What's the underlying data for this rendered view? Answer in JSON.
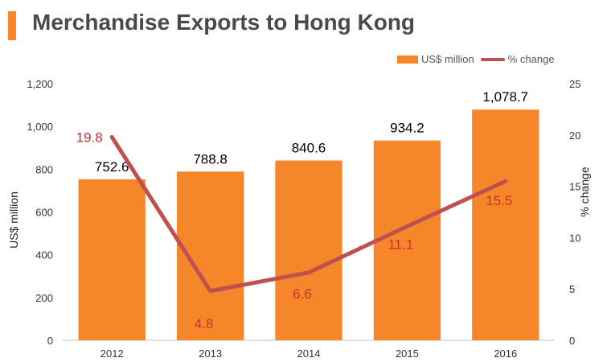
{
  "header": {
    "title": "Merchandise Exports to Hong Kong"
  },
  "legend": {
    "bar_label": "US$ million",
    "line_label": "% change"
  },
  "colors": {
    "accent": "#f5872a",
    "bar": "#f5872a",
    "line": "#c0504d",
    "line_label": "#c9302c"
  },
  "chart_data": {
    "type": "bar",
    "title": "Merchandise Exports to Hong Kong",
    "categories": [
      "2012",
      "2013",
      "2014",
      "2015",
      "2016"
    ],
    "series": [
      {
        "name": "US$ million",
        "type": "bar",
        "axis": "left",
        "values": [
          752.6,
          788.8,
          840.6,
          934.2,
          1078.7
        ],
        "labels": [
          "752.6",
          "788.8",
          "840.6",
          "934.2",
          "1,078.7"
        ]
      },
      {
        "name": "% change",
        "type": "line",
        "axis": "right",
        "values": [
          19.8,
          4.8,
          6.6,
          11.1,
          15.5
        ],
        "labels": [
          "19.8",
          "4.8",
          "6.6",
          "11.1",
          "15.5"
        ]
      }
    ],
    "ylabel": "US$ million",
    "y2label": "% change",
    "ylim": [
      0,
      1200
    ],
    "y2lim": [
      0,
      25
    ],
    "yticks": [
      "0",
      "200",
      "400",
      "600",
      "800",
      "1,000",
      "1,200"
    ],
    "y2ticks": [
      "0",
      "5",
      "10",
      "15",
      "20",
      "25"
    ],
    "grid": false,
    "legend_position": "top-right"
  }
}
